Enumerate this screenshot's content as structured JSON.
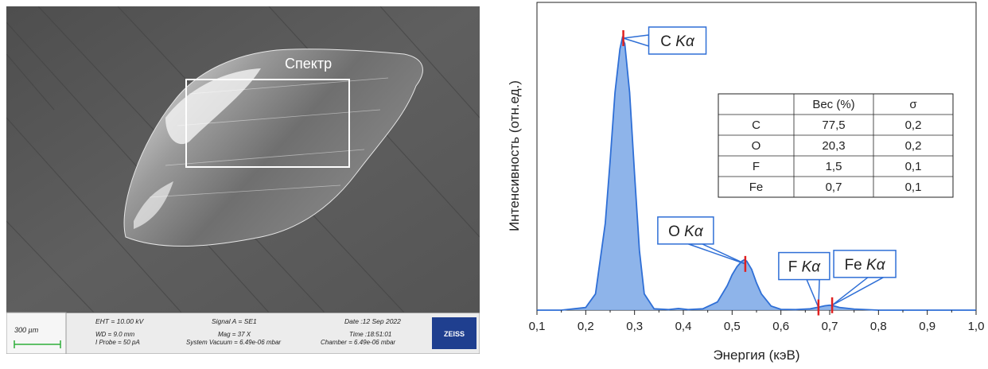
{
  "sem": {
    "roi_label": "Спектр",
    "info": {
      "scale": "300 µm",
      "eht": "EHT = 10.00 kV",
      "wd": "WD =  9.0 mm",
      "iprobe": "I Probe =    50 pA",
      "signal": "Signal A = SE1",
      "mag": "Mag =    37 X",
      "sysvac": "System Vacuum = 6.49e-06 mbar",
      "date": "Date :12 Sep 2022",
      "time": "Time :18:51:01",
      "chamber": "Chamber = 6.49e-06 mbar",
      "logo": "ZEISS"
    },
    "colors": {
      "background": "#5a5a5a",
      "particle": "#d8d8d8",
      "info_bg": "#e9e9e9",
      "logo_bg": "#1f3f8f",
      "scale_bar": "#2fae3a"
    }
  },
  "chart_data": {
    "type": "area",
    "xlabel": "Энергия (кэВ)",
    "ylabel": "Интенсивность (отн.ед.)",
    "xlim": [
      0.1,
      1.0
    ],
    "ylim": [
      0,
      1.0
    ],
    "x_ticks": [
      "0,1",
      "0,2",
      "0,3",
      "0,4",
      "0,5",
      "0,6",
      "0,7",
      "0,8",
      "0,9",
      "1,0"
    ],
    "y_ticks_shown": false,
    "series": [
      {
        "color": "#7aa7e6",
        "stroke": "#2f6fd6",
        "x": [
          0.1,
          0.15,
          0.2,
          0.22,
          0.24,
          0.25,
          0.26,
          0.27,
          0.275,
          0.28,
          0.29,
          0.3,
          0.31,
          0.32,
          0.34,
          0.37,
          0.39,
          0.41,
          0.44,
          0.47,
          0.49,
          0.5,
          0.51,
          0.52,
          0.525,
          0.53,
          0.54,
          0.55,
          0.56,
          0.58,
          0.6,
          0.63,
          0.66,
          0.68,
          0.69,
          0.7,
          0.71,
          0.72,
          0.75,
          0.8,
          0.9,
          1.0
        ],
        "y": [
          0.0,
          0.0,
          0.01,
          0.06,
          0.32,
          0.55,
          0.8,
          0.96,
          1.0,
          0.98,
          0.8,
          0.5,
          0.22,
          0.06,
          0.005,
          0.002,
          0.006,
          0.002,
          0.005,
          0.03,
          0.09,
          0.13,
          0.16,
          0.18,
          0.185,
          0.18,
          0.15,
          0.1,
          0.06,
          0.015,
          0.003,
          0.002,
          0.005,
          0.012,
          0.016,
          0.018,
          0.015,
          0.01,
          0.004,
          0.0,
          0.0,
          0.0
        ]
      }
    ],
    "annotations": [
      {
        "text": "C Kα",
        "x": 0.277,
        "y": 1.0
      },
      {
        "text": "O Kα",
        "x": 0.527,
        "y": 0.17
      },
      {
        "text": "F Kα",
        "x": 0.677,
        "y": 0.01
      },
      {
        "text": "Fe Kα",
        "x": 0.705,
        "y": 0.018
      }
    ],
    "table": {
      "headers": [
        "",
        "Вес (%)",
        "σ"
      ],
      "rows": [
        [
          "C",
          "77,5",
          "0,2"
        ],
        [
          "O",
          "20,3",
          "0,2"
        ],
        [
          "F",
          "1,5",
          "0,1"
        ],
        [
          "Fe",
          "0,7",
          "0,1"
        ]
      ]
    }
  }
}
